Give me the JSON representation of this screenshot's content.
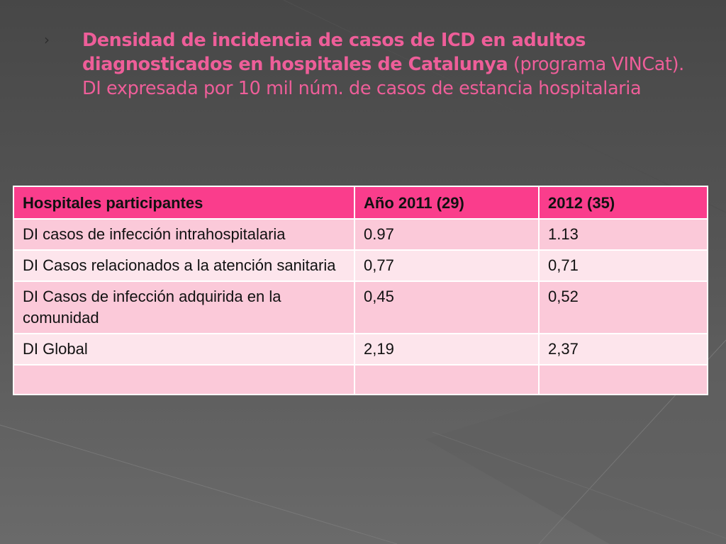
{
  "slide": {
    "bullet": "›",
    "title_bold": "Densidad de incidencia de casos de ICD en adultos diagnosticados en hospitales de Catalunya",
    "title_normal": " (programa VINCat). DI expresada por 10 mil  núm. de casos de estancia hospitalaria",
    "colors": {
      "title": "#ee5e99",
      "header_bg": "#fa3d8c",
      "row_dark": "#fbc9d9",
      "row_light": "#fde5ec",
      "background": "#555555"
    }
  },
  "table": {
    "headers": [
      "Hospitales participantes",
      "Año 2011 (29)",
      "2012 (35)"
    ],
    "rows": [
      [
        "DI casos de infección intrahospitalaria",
        "0.97",
        "1.13"
      ],
      [
        "DI Casos relacionados a la atención sanitaria",
        "0,77",
        "0,71"
      ],
      [
        "DI Casos de infección adquirida en la comunidad",
        "0,45",
        "0,52"
      ],
      [
        "DI Global",
        "2,19",
        "2,37"
      ],
      [
        "",
        "",
        ""
      ]
    ]
  }
}
